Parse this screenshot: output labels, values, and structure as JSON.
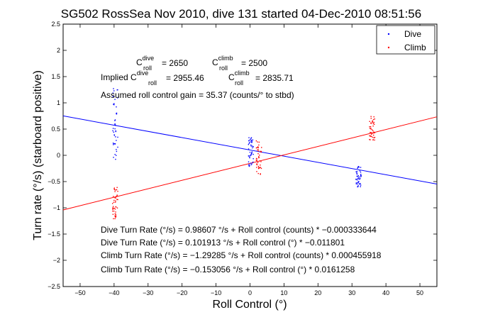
{
  "chart_data": {
    "type": "scatter",
    "title": "SG502 RossSea Nov 2010, dive 131 started 04-Dec-2010 08:51:56",
    "xlabel": "Roll Control (°)",
    "ylabel": "Turn rate (°/s) (starboard positive)",
    "xlim": [
      -55,
      55
    ],
    "ylim": [
      -2.5,
      2.5
    ],
    "xticks": [
      -50,
      -40,
      -30,
      -20,
      -10,
      0,
      10,
      20,
      30,
      40,
      50
    ],
    "yticks": [
      -2.5,
      -2,
      -1.5,
      -1,
      -0.5,
      0,
      0.5,
      1,
      1.5,
      2,
      2.5
    ],
    "xtick_labels": [
      "−50",
      "−40",
      "−30",
      "−20",
      "−10",
      "0",
      "10",
      "20",
      "30",
      "40",
      "50"
    ],
    "ytick_labels": [
      "−2.5",
      "−2",
      "−1.5",
      "−1",
      "−0.5",
      "0",
      "0.5",
      "1",
      "1.5",
      "2",
      "2.5"
    ],
    "grid": false,
    "legend": "top-right",
    "series": [
      {
        "name": "Dive",
        "color": "#0000ff",
        "clusters": [
          {
            "x": -39.8,
            "y_min": -0.1,
            "y_max": 1.3
          },
          {
            "x": 0.2,
            "y_min": -0.2,
            "y_max": 0.35
          },
          {
            "x": 31.8,
            "y_min": -0.6,
            "y_max": -0.2
          }
        ],
        "fit": {
          "slope": -0.011801,
          "intercept": 0.101913
        }
      },
      {
        "name": "Climb",
        "color": "#ff0000",
        "clusters": [
          {
            "x": -39.8,
            "y_min": -1.2,
            "y_max": -0.6
          },
          {
            "x": 2.5,
            "y_min": -0.4,
            "y_max": 0.3
          },
          {
            "x": 35.8,
            "y_min": 0.3,
            "y_max": 0.75
          }
        ],
        "fit": {
          "slope": 0.0161258,
          "intercept": -0.153056
        }
      }
    ],
    "annotations": {
      "c_dive": {
        "pre": "C",
        "sup": "dive",
        "sub": "roll",
        "post": " = 2650"
      },
      "c_climb": {
        "pre": "C",
        "sup": "climb",
        "sub": "roll",
        "post": " = 2500"
      },
      "implied_dive": {
        "pre": "Implied C",
        "sup": "dive",
        "sub": "roll",
        "post": " = 2955.46"
      },
      "implied_climb": {
        "pre": "C",
        "sup": "climb",
        "sub": "roll",
        "post": " = 2835.71"
      },
      "gain": "Assumed roll control gain = 35.37 (counts/° to stbd)",
      "fit_lines": [
        "Dive Turn Rate (°/s) = 0.98607 °/s + Roll control (counts) * −0.000333644",
        "Dive Turn Rate (°/s) = 0.101913 °/s + Roll control (°) * −0.011801",
        "Climb Turn Rate (°/s) = −1.29285 °/s + Roll control (counts) * 0.000455918",
        "Climb Turn Rate (°/s) = −0.153056 °/s + Roll control (°) * 0.0161258"
      ]
    }
  }
}
